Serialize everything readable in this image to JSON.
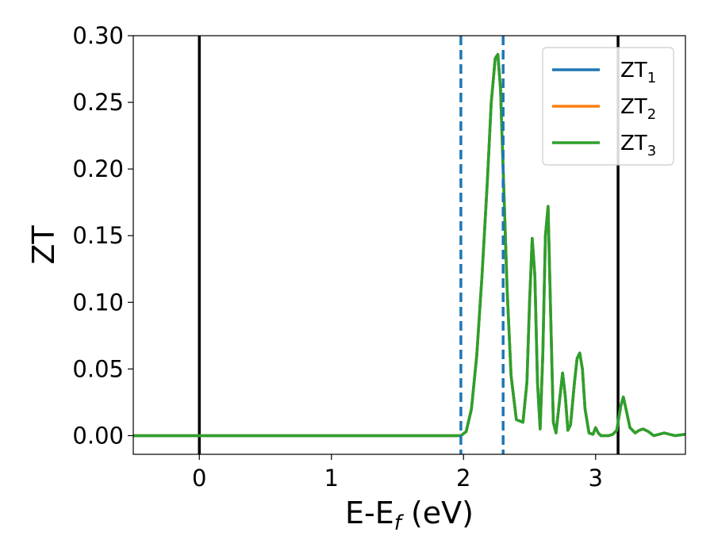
{
  "chart_data": {
    "type": "line",
    "xlabel": "E-E",
    "xlabel_sub": "f",
    "xlabel_unit": " (eV)",
    "ylabel": "ZT",
    "xlim": [
      -0.5,
      3.68
    ],
    "ylim": [
      -0.014,
      0.3
    ],
    "xticks": [
      0,
      1,
      2,
      3
    ],
    "xtick_labels": [
      "0",
      "1",
      "2",
      "3"
    ],
    "yticks": [
      0.0,
      0.05,
      0.1,
      0.15,
      0.2,
      0.25,
      0.3
    ],
    "ytick_labels": [
      "0.00",
      "0.05",
      "0.10",
      "0.15",
      "0.20",
      "0.25",
      "0.30"
    ],
    "grid": false,
    "legend_position": "top-right",
    "series": [
      {
        "name": "ZT",
        "sub": "1",
        "color": "#1f77b4"
      },
      {
        "name": "ZT",
        "sub": "2",
        "color": "#ff7f0e"
      },
      {
        "name": "ZT",
        "sub": "3",
        "color": "#2ca02c"
      }
    ],
    "curve": {
      "x": [
        -0.5,
        1.98,
        2.02,
        2.06,
        2.1,
        2.14,
        2.18,
        2.21,
        2.24,
        2.26,
        2.28,
        2.3,
        2.33,
        2.36,
        2.4,
        2.45,
        2.48,
        2.5,
        2.52,
        2.54,
        2.56,
        2.58,
        2.6,
        2.62,
        2.64,
        2.66,
        2.68,
        2.7,
        2.72,
        2.75,
        2.77,
        2.79,
        2.81,
        2.84,
        2.86,
        2.88,
        2.9,
        2.92,
        2.95,
        2.98,
        3.0,
        3.02,
        3.04,
        3.07,
        3.1,
        3.13,
        3.16,
        3.19,
        3.21,
        3.23,
        3.26,
        3.3,
        3.33,
        3.36,
        3.4,
        3.44,
        3.48,
        3.52,
        3.56,
        3.6,
        3.68
      ],
      "y": [
        0.0,
        0.0,
        0.003,
        0.02,
        0.06,
        0.12,
        0.19,
        0.25,
        0.283,
        0.286,
        0.26,
        0.2,
        0.11,
        0.045,
        0.012,
        0.01,
        0.04,
        0.1,
        0.148,
        0.12,
        0.04,
        0.005,
        0.06,
        0.15,
        0.172,
        0.09,
        0.01,
        0.002,
        0.02,
        0.047,
        0.03,
        0.004,
        0.008,
        0.04,
        0.058,
        0.062,
        0.05,
        0.02,
        0.002,
        0.001,
        0.006,
        0.002,
        0.0,
        0.0,
        0.0,
        0.001,
        0.004,
        0.022,
        0.029,
        0.02,
        0.006,
        0.002,
        0.004,
        0.005,
        0.003,
        0.0,
        0.001,
        0.002,
        0.001,
        0.0,
        0.001
      ]
    },
    "vlines_solid": [
      0.0,
      3.17
    ],
    "vlines_dashed": [
      1.98,
      2.3
    ],
    "solid_color": "#000000",
    "dashed_color": "#1f77b4"
  }
}
